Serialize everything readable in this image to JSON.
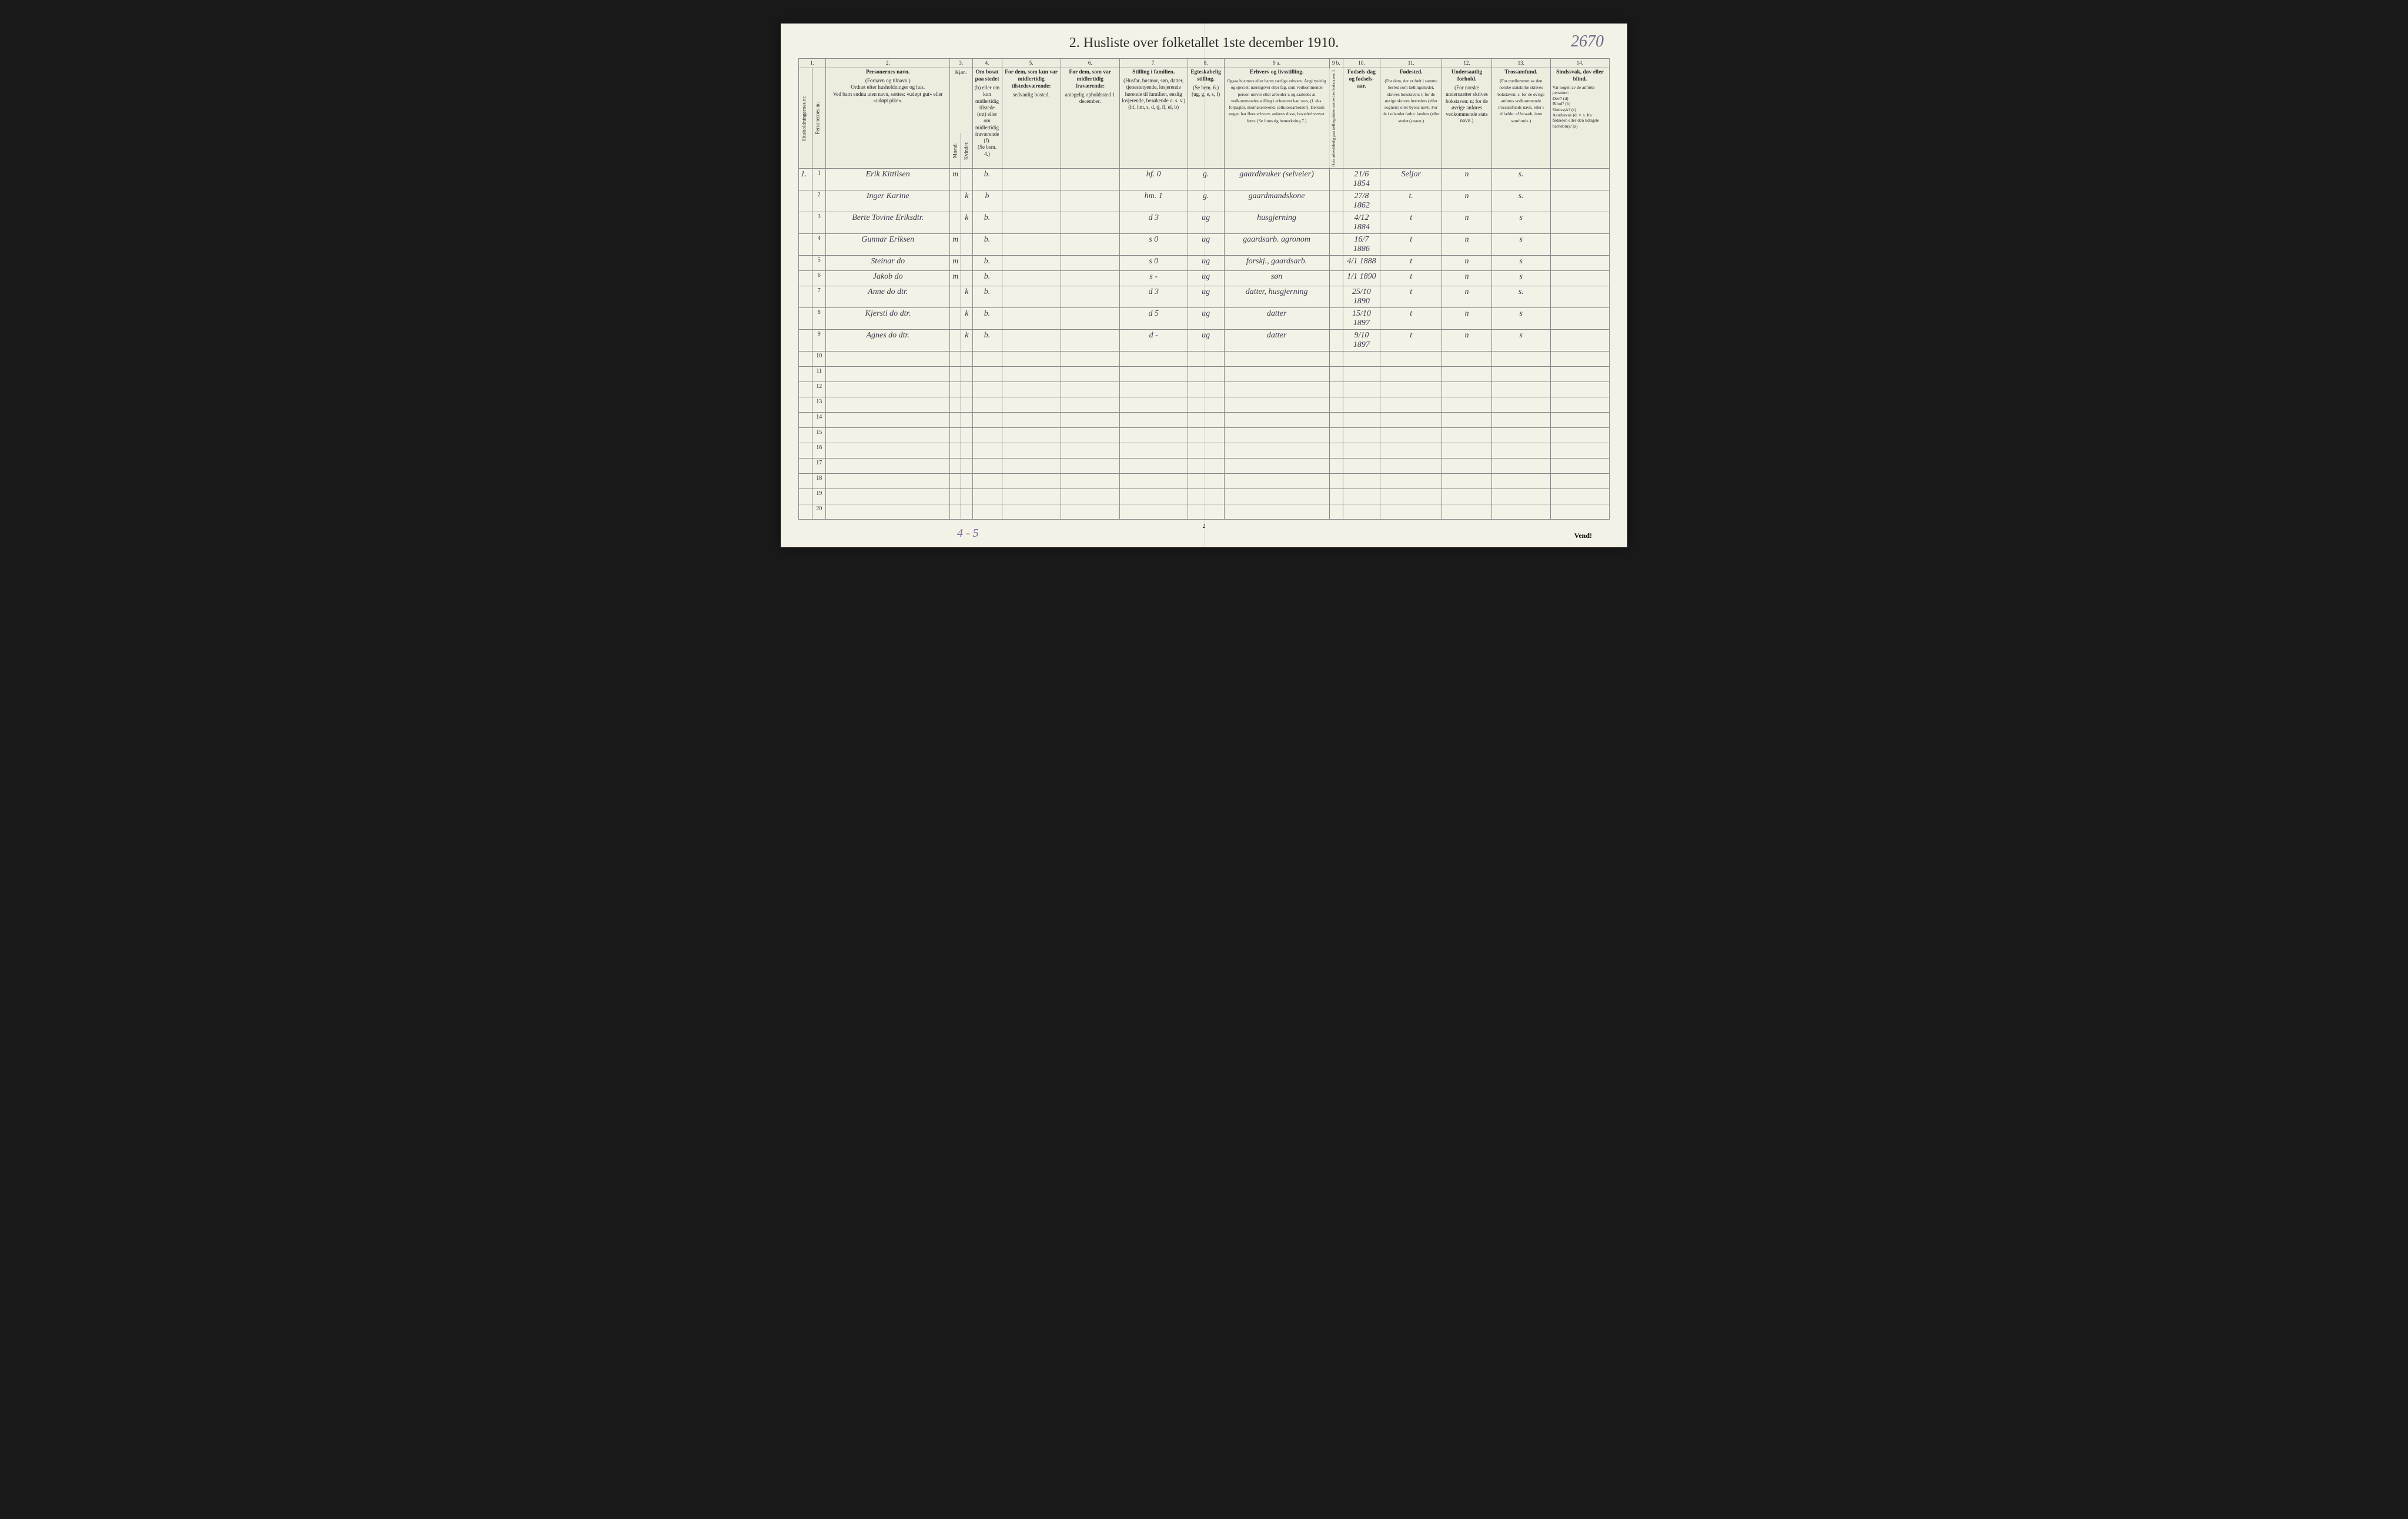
{
  "pageCornerNumber": "2670",
  "title": "2. Husliste over folketallet 1ste december 1910.",
  "footerAnnotation": "4 - 5",
  "bottomPageNumber": "2",
  "vend": "Vend!",
  "columns": {
    "colNums": [
      "1.",
      "2.",
      "3.",
      "4.",
      "5.",
      "6.",
      "7.",
      "8.",
      "9 a.",
      "9 b.",
      "10.",
      "11.",
      "12.",
      "13.",
      "14."
    ],
    "c1_sub1": "Husholdningernes nr.",
    "c1_sub2": "Personernes nr.",
    "c2_title": "Personernes navn.",
    "c2_text": "(Fornavn og tilnavn.)\nOrdnet efter husholdninger og hus.\nVed barn endnu uten navn, sættes: «udøpt gut» eller «udøpt pike».",
    "c3_title": "Kjøn.",
    "c3_sub1": "Mænd.",
    "c3_sub2": "Kvinder.",
    "c3_mk": "m.  k.",
    "c4_title": "Om bosat paa stedet",
    "c4_text": "(b) eller om kun midlertidig tilstede (mt) eller om midlertidig fraværende (f).\n(Se bem. 4.)",
    "c5_title": "For dem, som kun var midlertidig tilstedeværende:",
    "c5_text": "sedvanlig bosted.",
    "c6_title": "For dem, som var midlertidig fraværende:",
    "c6_text": "antagelig opholdssted 1 december.",
    "c7_title": "Stilling i familien.",
    "c7_text": "(Husfar, husmor, søn, datter, tjenestetyende, losjerende hørende til familien, enslig losjerende, besøkende o. s. v.)\n(hf, hm, s, d, tj, fl, el, b)",
    "c8_title": "Egteskabelig stilling.",
    "c8_text": "(Se bem. 6.)\n(ug, g, e, s, f)",
    "c9a_title": "Erhverv og livsstilling.",
    "c9a_text": "Ogsaa husmors eller barns særlige erhverv. Angi tydelig og specielt næringsvei eller fag, som vedkommende person utøver eller arbeider i, og saaledes at vedkommendes stilling i erhvervet kan sees, (f. eks. forpagter, skomakersvend, cellulosearbeider). Dersom nogen har flere erhverv, anføres disse, hovederhvervet først.\n(Se forøvrig bemerkning 7.)",
    "c9b_text": "Hvis arbeidsledig paa tællingstiden sættes her bokstaven: l.",
    "c10_title": "Fødsels-dag og fødsels-aar.",
    "c11_title": "Fødested.",
    "c11_text": "(For dem, der er født i samme herred som tællingsstedet, skrives bokstaven: t; for de øvrige skrives herredets (eller sognets) eller byens navn. For de i utlandet fødte: landets (eller stedets) navn.)",
    "c12_title": "Undersaatlig forhold.",
    "c12_text": "(For norske undersaatter skrives bokstaven: n; for de øvrige anføres vedkommende stats navn.)",
    "c13_title": "Trossamfund.",
    "c13_text": "(For medlemmer av den norske statskirke skrives bokstaven: s; for de øvrige anføres vedkommende trossamfunds navn, eller i tilfælde: «Uttraadt, intet samfund».)",
    "c14_title": "Sindssvak, døv eller blind.",
    "c14_text": "Var nogen av de anførte personer:\nDøv? (d)\nBlind? (b)\nSindssyk? (s)\nAandssvak (d. v. s. fra fødselen eller den tidligste barndom)? (a)"
  },
  "rows": [
    {
      "hh": "1.",
      "pn": "1",
      "name": "Erik Kittilsen",
      "m": "m",
      "k": "",
      "res": "b.",
      "away1": "",
      "away2": "",
      "stil": "hf.   0",
      "egt": "g.",
      "erhv": "gaardbruker (selveier)",
      "l": "",
      "dob": "21/6 1854",
      "birth": "Seljor",
      "und": "n",
      "tros": "s.",
      "sind": ""
    },
    {
      "hh": "",
      "pn": "2",
      "name": "Inger Karine",
      "m": "",
      "k": "k",
      "res": "b",
      "away1": "",
      "away2": "",
      "stil": "hm.   1",
      "egt": "g.",
      "erhv": "gaardmandskone",
      "l": "",
      "dob": "27/8 1862",
      "birth": "t.",
      "und": "n",
      "tros": "s.",
      "sind": ""
    },
    {
      "hh": "",
      "pn": "3",
      "name": "Berte Tovine Eriksdtr.",
      "m": "",
      "k": "k",
      "res": "b.",
      "away1": "",
      "away2": "",
      "stil": "d   3",
      "egt": "ug",
      "erhv": "husgjerning",
      "l": "",
      "dob": "4/12 1884",
      "birth": "t",
      "und": "n",
      "tros": "s",
      "sind": ""
    },
    {
      "hh": "",
      "pn": "4",
      "name": "Gunnar Eriksen",
      "m": "m",
      "k": "",
      "res": "b.",
      "away1": "",
      "away2": "",
      "stil": "s   0",
      "egt": "ug",
      "erhv": "gaardsarb. agronom",
      "l": "",
      "dob": "16/7 1886",
      "birth": "t",
      "und": "n",
      "tros": "s",
      "sind": ""
    },
    {
      "hh": "",
      "pn": "5",
      "name": "Steinar      do",
      "m": "m",
      "k": "",
      "res": "b.",
      "away1": "",
      "away2": "",
      "stil": "s   0",
      "egt": "ug",
      "erhv": "forskj., gaardsarb.",
      "l": "",
      "dob": "4/1 1888",
      "birth": "t",
      "und": "n",
      "tros": "s",
      "sind": ""
    },
    {
      "hh": "",
      "pn": "6",
      "name": "Jakob        do",
      "m": "m",
      "k": "",
      "res": "b.",
      "away1": "",
      "away2": "",
      "stil": "s   -",
      "egt": "ug",
      "erhv": "søn",
      "l": "",
      "dob": "1/1 1890",
      "birth": "t",
      "und": "n",
      "tros": "s",
      "sind": ""
    },
    {
      "hh": "",
      "pn": "7",
      "name": "Anne      do dtr.",
      "m": "",
      "k": "k",
      "res": "b.",
      "away1": "",
      "away2": "",
      "stil": "d   3",
      "egt": "ug",
      "erhv": "datter, husgjerning",
      "l": "",
      "dob": "25/10 1890",
      "birth": "t",
      "und": "n",
      "tros": "s.",
      "sind": ""
    },
    {
      "hh": "",
      "pn": "8",
      "name": "Kjersti    do dtr.",
      "m": "",
      "k": "k",
      "res": "b.",
      "away1": "",
      "away2": "",
      "stil": "d   5",
      "egt": "ug",
      "erhv": "datter",
      "l": "",
      "dob": "15/10 1897",
      "birth": "t",
      "und": "n",
      "tros": "s",
      "sind": ""
    },
    {
      "hh": "",
      "pn": "9",
      "name": "Agnes     do dtr.",
      "m": "",
      "k": "k",
      "res": "b.",
      "away1": "",
      "away2": "",
      "stil": "d   -",
      "egt": "ug",
      "erhv": "datter",
      "l": "",
      "dob": "9/10 1897",
      "birth": "t",
      "und": "n",
      "tros": "s",
      "sind": ""
    }
  ],
  "emptyRowCount": 11,
  "style": {
    "pageBg": "#f4f2e6",
    "bodyBg": "#1a1a1a",
    "borderColor": "#888",
    "inkColor": "#3a3a4a",
    "printColor": "#2a2a2a",
    "pencilColor": "#7a6aa8"
  }
}
